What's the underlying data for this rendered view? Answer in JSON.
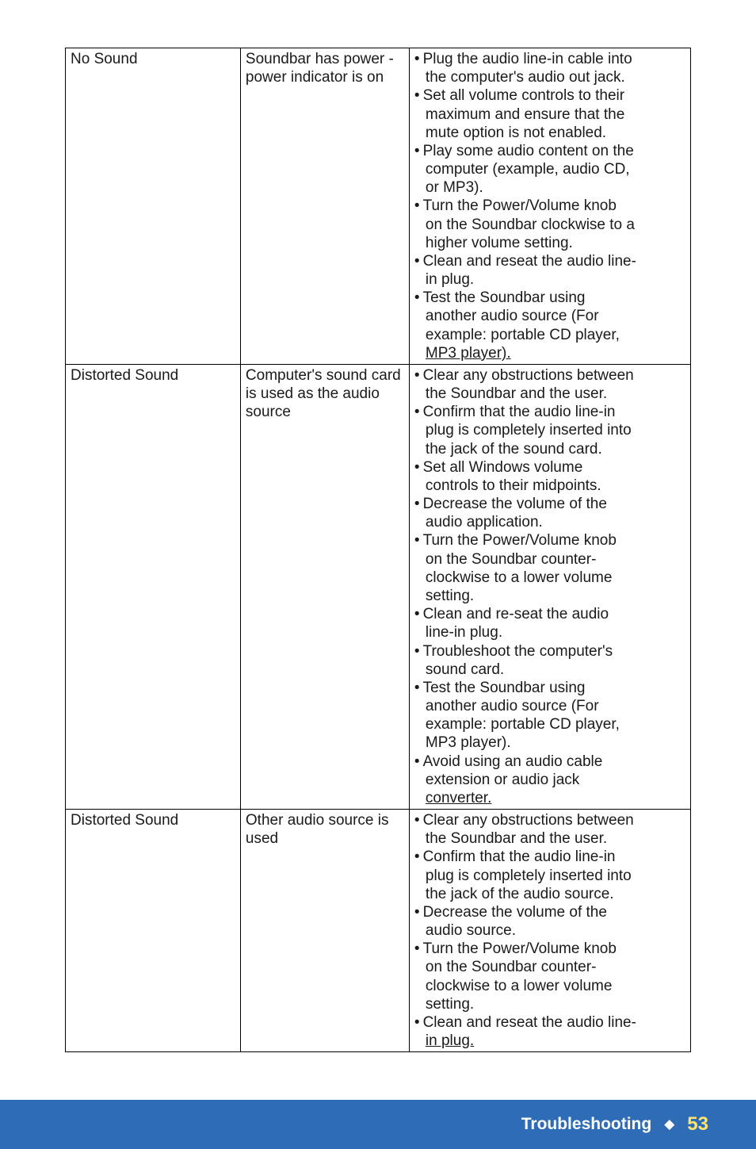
{
  "table": {
    "rows": [
      {
        "problem": "No Sound",
        "cause": "Soundbar has power - power indicator is on",
        "solutions": [
          [
            "Plug the audio line-in cable into",
            "the computer's audio out jack."
          ],
          [
            "Set all volume controls to their",
            "maximum and ensure that the",
            "mute option is not enabled."
          ],
          [
            "Play some audio content on the",
            "computer (example, audio CD,",
            "or MP3)."
          ],
          [
            "Turn the Power/Volume knob",
            "on the Soundbar clockwise to a",
            "higher volume setting."
          ],
          [
            "Clean and reseat the audio line-",
            "in plug."
          ],
          [
            "Test the Soundbar using",
            "another audio source (For",
            "example: portable CD player,",
            "MP3 player)."
          ]
        ],
        "underline_last": true
      },
      {
        "problem": "Distorted Sound",
        "cause": "Computer's sound card is used as the audio source",
        "solutions": [
          [
            "Clear any obstructions between",
            "the Soundbar and the user."
          ],
          [
            "Confirm that the audio line-in",
            "plug is completely inserted into",
            "the jack of the sound card."
          ],
          [
            "Set all Windows volume",
            "controls to their midpoints."
          ],
          [
            "Decrease the volume of the",
            "audio application."
          ],
          [
            "Turn the Power/Volume knob",
            "on the Soundbar counter-",
            "clockwise to a lower volume",
            "setting."
          ],
          [
            "Clean and re-seat the audio",
            "line-in plug."
          ],
          [
            "Troubleshoot the computer's",
            "sound card."
          ],
          [
            "Test the Soundbar using",
            "another audio source (For",
            "example: portable CD player,",
            "MP3 player)."
          ],
          [
            "Avoid using an audio cable",
            "extension or audio jack",
            "converter."
          ]
        ],
        "underline_last": true
      },
      {
        "problem": "Distorted Sound",
        "cause": "Other audio source is used",
        "solutions": [
          [
            "Clear any obstructions between",
            "the Soundbar and the user."
          ],
          [
            "Confirm that the audio line-in",
            "plug is completely inserted into",
            "the jack of the audio source."
          ],
          [
            "Decrease the volume of the",
            "audio source."
          ],
          [
            "Turn the Power/Volume knob",
            "on the Soundbar counter-",
            "clockwise to a lower volume",
            "setting."
          ],
          [
            "Clean and reseat the audio line-",
            "in plug."
          ]
        ],
        "underline_last": true
      }
    ]
  },
  "footer": {
    "title": "Troubleshooting",
    "page": "53"
  },
  "colors": {
    "footer_bg": "#2e6cb5",
    "footer_text": "#ffffff",
    "page_num": "#ffe36e",
    "border": "#000000"
  }
}
